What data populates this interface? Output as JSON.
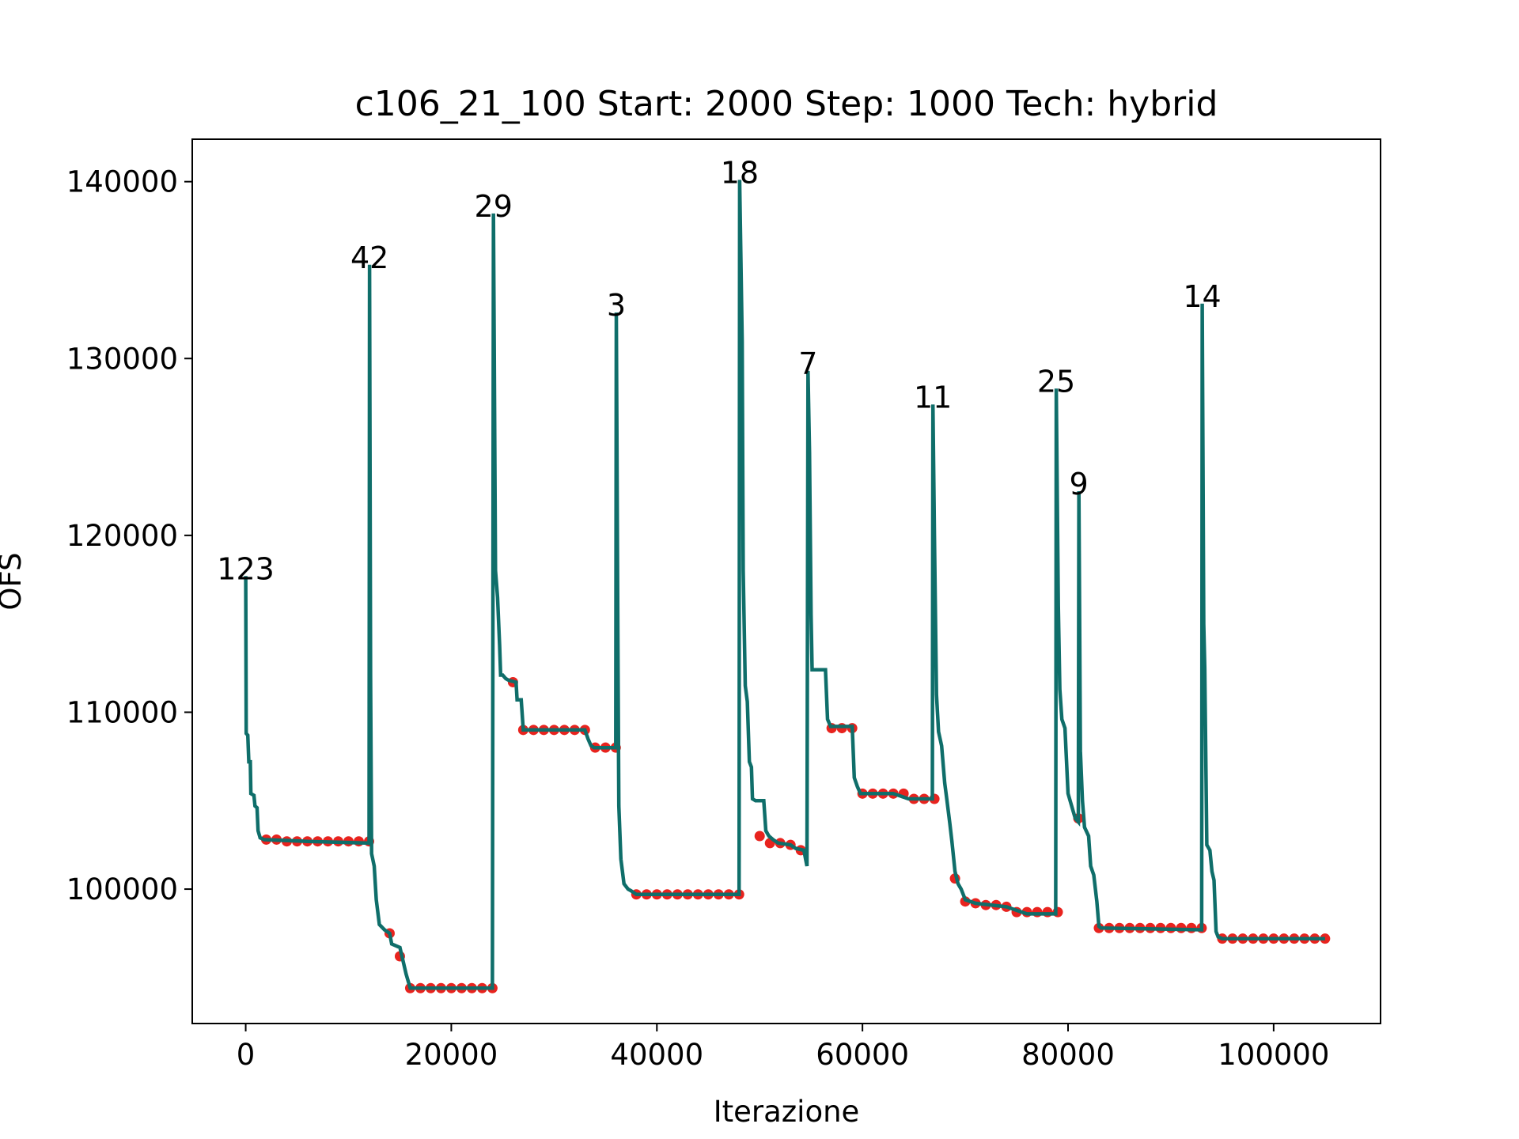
{
  "chart_data": {
    "type": "line",
    "title": "c106_21_100 Start: 2000 Step: 1000 Tech: hybrid",
    "xlabel": "Iterazione",
    "ylabel": "OFS",
    "xlim": [
      -5200,
      110400
    ],
    "ylim": [
      92400,
      142400
    ],
    "xticks": [
      0,
      20000,
      40000,
      60000,
      80000,
      100000
    ],
    "yticks": [
      100000,
      110000,
      120000,
      130000,
      140000
    ],
    "grid": false,
    "line_color": "#0f6e6a",
    "marker_color": "#e8231e",
    "series": [
      {
        "line_points": [
          [
            0,
            117700
          ],
          [
            50,
            108800
          ],
          [
            200,
            108700
          ],
          [
            300,
            107200
          ],
          [
            450,
            107200
          ],
          [
            500,
            105400
          ],
          [
            800,
            105300
          ],
          [
            900,
            104700
          ],
          [
            1100,
            104600
          ],
          [
            1200,
            103300
          ],
          [
            1400,
            102900
          ],
          [
            1800,
            102800
          ],
          [
            6000,
            102700
          ],
          [
            12000,
            102600
          ],
          [
            12050,
            135300
          ],
          [
            12150,
            112000
          ],
          [
            12250,
            102000
          ],
          [
            12500,
            101300
          ],
          [
            12700,
            99400
          ],
          [
            13000,
            98000
          ],
          [
            13500,
            97700
          ],
          [
            14000,
            97500
          ],
          [
            14200,
            96900
          ],
          [
            15000,
            96700
          ],
          [
            15200,
            96200
          ],
          [
            15600,
            95200
          ],
          [
            16000,
            94400
          ],
          [
            24000,
            94400
          ],
          [
            24100,
            138200
          ],
          [
            24300,
            118000
          ],
          [
            24500,
            116500
          ],
          [
            24700,
            113800
          ],
          [
            24800,
            112100
          ],
          [
            25000,
            112100
          ],
          [
            25300,
            111900
          ],
          [
            25600,
            111800
          ],
          [
            26300,
            111700
          ],
          [
            26400,
            110700
          ],
          [
            26800,
            110700
          ],
          [
            27000,
            109000
          ],
          [
            33000,
            109000
          ],
          [
            33300,
            108500
          ],
          [
            33600,
            108100
          ],
          [
            33900,
            108000
          ],
          [
            36000,
            108000
          ],
          [
            36050,
            132600
          ],
          [
            36200,
            115000
          ],
          [
            36300,
            104700
          ],
          [
            36500,
            101700
          ],
          [
            36800,
            100300
          ],
          [
            37200,
            100000
          ],
          [
            37500,
            99900
          ],
          [
            38000,
            99700
          ],
          [
            48000,
            99700
          ],
          [
            48050,
            140100
          ],
          [
            48300,
            131000
          ],
          [
            48400,
            118000
          ],
          [
            48600,
            111500
          ],
          [
            48800,
            110600
          ],
          [
            49000,
            107200
          ],
          [
            49200,
            106900
          ],
          [
            49300,
            105100
          ],
          [
            49600,
            105000
          ],
          [
            50400,
            105000
          ],
          [
            50600,
            103300
          ],
          [
            50900,
            103000
          ],
          [
            51300,
            102800
          ],
          [
            51800,
            102600
          ],
          [
            53000,
            102500
          ],
          [
            53500,
            102300
          ],
          [
            54300,
            102200
          ],
          [
            54600,
            101300
          ],
          [
            54700,
            129300
          ],
          [
            54850,
            124700
          ],
          [
            55000,
            115500
          ],
          [
            55100,
            112400
          ],
          [
            56400,
            112400
          ],
          [
            56600,
            109600
          ],
          [
            56900,
            109200
          ],
          [
            59000,
            109200
          ],
          [
            59200,
            106300
          ],
          [
            59500,
            105800
          ],
          [
            59800,
            105400
          ],
          [
            63000,
            105400
          ],
          [
            64500,
            105100
          ],
          [
            66800,
            105100
          ],
          [
            66850,
            127400
          ],
          [
            67000,
            120000
          ],
          [
            67200,
            111000
          ],
          [
            67400,
            108900
          ],
          [
            67700,
            108100
          ],
          [
            68000,
            106000
          ],
          [
            68200,
            105100
          ],
          [
            68500,
            103700
          ],
          [
            68700,
            102700
          ],
          [
            69000,
            101000
          ],
          [
            69300,
            100300
          ],
          [
            69600,
            100000
          ],
          [
            70000,
            99400
          ],
          [
            71000,
            99200
          ],
          [
            74000,
            99000
          ],
          [
            75000,
            98800
          ],
          [
            76000,
            98600
          ],
          [
            78800,
            98600
          ],
          [
            78850,
            128300
          ],
          [
            79050,
            116000
          ],
          [
            79200,
            111300
          ],
          [
            79400,
            109600
          ],
          [
            79700,
            109100
          ],
          [
            80000,
            105400
          ],
          [
            80300,
            104800
          ],
          [
            80700,
            104000
          ],
          [
            81000,
            103800
          ],
          [
            81050,
            122500
          ],
          [
            81200,
            107800
          ],
          [
            81400,
            105000
          ],
          [
            81600,
            103500
          ],
          [
            82000,
            103000
          ],
          [
            82200,
            101300
          ],
          [
            82500,
            100800
          ],
          [
            82800,
            99300
          ],
          [
            83000,
            97900
          ],
          [
            83200,
            97800
          ],
          [
            93000,
            97700
          ],
          [
            93050,
            133100
          ],
          [
            93200,
            115000
          ],
          [
            93300,
            112500
          ],
          [
            93500,
            102500
          ],
          [
            93800,
            102200
          ],
          [
            94000,
            101000
          ],
          [
            94200,
            100500
          ],
          [
            94400,
            97600
          ],
          [
            94600,
            97300
          ],
          [
            95000,
            97200
          ],
          [
            105000,
            97200
          ]
        ],
        "markers": [
          [
            2000,
            102800
          ],
          [
            3000,
            102800
          ],
          [
            4000,
            102700
          ],
          [
            5000,
            102700
          ],
          [
            6000,
            102700
          ],
          [
            7000,
            102700
          ],
          [
            8000,
            102700
          ],
          [
            9000,
            102700
          ],
          [
            10000,
            102700
          ],
          [
            11000,
            102700
          ],
          [
            12000,
            102700
          ],
          [
            14000,
            97500
          ],
          [
            15000,
            96200
          ],
          [
            16000,
            94400
          ],
          [
            17000,
            94400
          ],
          [
            18000,
            94400
          ],
          [
            19000,
            94400
          ],
          [
            20000,
            94400
          ],
          [
            21000,
            94400
          ],
          [
            22000,
            94400
          ],
          [
            23000,
            94400
          ],
          [
            24000,
            94400
          ],
          [
            26000,
            111700
          ],
          [
            27000,
            109000
          ],
          [
            28000,
            109000
          ],
          [
            29000,
            109000
          ],
          [
            30000,
            109000
          ],
          [
            31000,
            109000
          ],
          [
            32000,
            109000
          ],
          [
            33000,
            109000
          ],
          [
            34000,
            108000
          ],
          [
            35000,
            108000
          ],
          [
            36000,
            108000
          ],
          [
            38000,
            99700
          ],
          [
            39000,
            99700
          ],
          [
            40000,
            99700
          ],
          [
            41000,
            99700
          ],
          [
            42000,
            99700
          ],
          [
            43000,
            99700
          ],
          [
            44000,
            99700
          ],
          [
            45000,
            99700
          ],
          [
            46000,
            99700
          ],
          [
            47000,
            99700
          ],
          [
            48000,
            99700
          ],
          [
            50000,
            103000
          ],
          [
            51000,
            102600
          ],
          [
            52000,
            102600
          ],
          [
            53000,
            102500
          ],
          [
            54000,
            102200
          ],
          [
            57000,
            109100
          ],
          [
            58000,
            109100
          ],
          [
            59000,
            109100
          ],
          [
            60000,
            105400
          ],
          [
            61000,
            105400
          ],
          [
            62000,
            105400
          ],
          [
            63000,
            105400
          ],
          [
            64000,
            105400
          ],
          [
            65000,
            105100
          ],
          [
            66000,
            105100
          ],
          [
            67000,
            105100
          ],
          [
            69000,
            100600
          ],
          [
            70000,
            99300
          ],
          [
            71000,
            99200
          ],
          [
            72000,
            99100
          ],
          [
            73000,
            99100
          ],
          [
            74000,
            99000
          ],
          [
            75000,
            98700
          ],
          [
            76000,
            98700
          ],
          [
            77000,
            98700
          ],
          [
            78000,
            98700
          ],
          [
            79000,
            98700
          ],
          [
            81000,
            104000
          ],
          [
            83000,
            97800
          ],
          [
            84000,
            97800
          ],
          [
            85000,
            97800
          ],
          [
            86000,
            97800
          ],
          [
            87000,
            97800
          ],
          [
            88000,
            97800
          ],
          [
            89000,
            97800
          ],
          [
            90000,
            97800
          ],
          [
            91000,
            97800
          ],
          [
            92000,
            97800
          ],
          [
            93000,
            97800
          ],
          [
            95000,
            97200
          ],
          [
            96000,
            97200
          ],
          [
            97000,
            97200
          ],
          [
            98000,
            97200
          ],
          [
            99000,
            97200
          ],
          [
            100000,
            97200
          ],
          [
            101000,
            97200
          ],
          [
            102000,
            97200
          ],
          [
            103000,
            97200
          ],
          [
            104000,
            97200
          ],
          [
            105000,
            97200
          ]
        ]
      }
    ],
    "annotations": [
      {
        "text": "123",
        "x": 0,
        "y": 117700
      },
      {
        "text": "42",
        "x": 12050,
        "y": 135300
      },
      {
        "text": "29",
        "x": 24100,
        "y": 138200
      },
      {
        "text": "3",
        "x": 36050,
        "y": 132600
      },
      {
        "text": "18",
        "x": 48050,
        "y": 140100
      },
      {
        "text": "7",
        "x": 54700,
        "y": 129300
      },
      {
        "text": "11",
        "x": 66850,
        "y": 127400
      },
      {
        "text": "25",
        "x": 78850,
        "y": 128300
      },
      {
        "text": "9",
        "x": 81050,
        "y": 122500
      },
      {
        "text": "14",
        "x": 93050,
        "y": 133100
      }
    ]
  }
}
